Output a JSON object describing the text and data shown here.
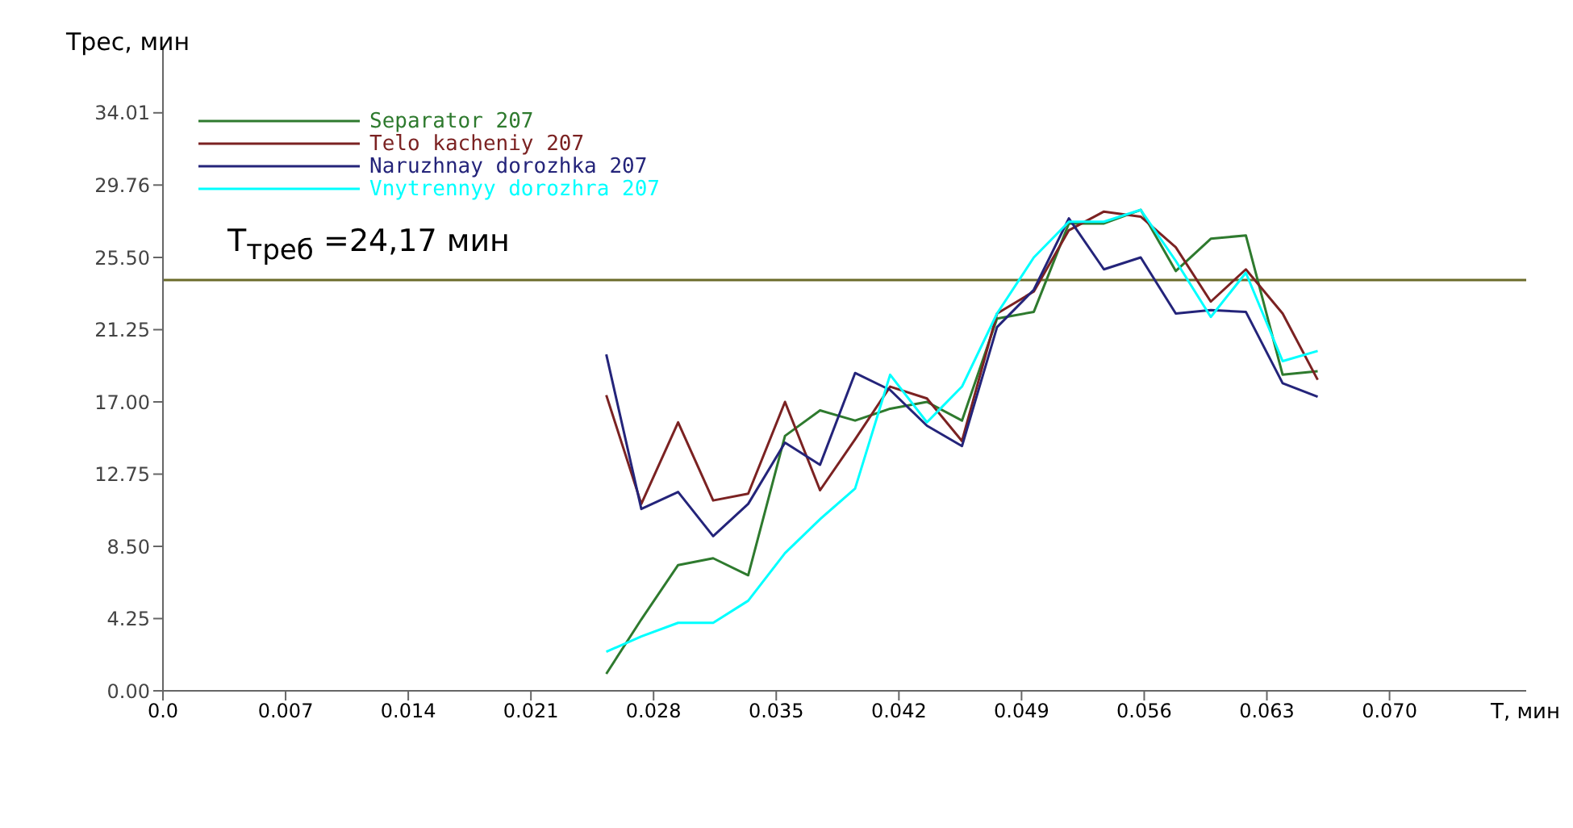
{
  "chart_data": {
    "type": "line",
    "xlabel": "T, мин",
    "ylabel": "Трес, мин",
    "x": [
      0.0253,
      0.0273,
      0.0294,
      0.0314,
      0.0334,
      0.0355,
      0.0375,
      0.0395,
      0.0415,
      0.0436,
      0.0456,
      0.0476,
      0.0497,
      0.0517,
      0.0537,
      0.0558,
      0.0578,
      0.0598,
      0.0618,
      0.0639,
      0.0659
    ],
    "series": [
      {
        "name": "Separator 207",
        "color": "#2e7a2e",
        "values": [
          1.0,
          4.2,
          7.4,
          7.8,
          6.8,
          15.0,
          16.5,
          15.9,
          16.6,
          17.0,
          15.9,
          21.9,
          22.3,
          27.5,
          27.5,
          28.3,
          24.7,
          26.6,
          26.8,
          18.6,
          18.8
        ]
      },
      {
        "name": "Telo kacheniy 207",
        "color": "#7b2222",
        "values": [
          17.4,
          11.0,
          15.8,
          11.2,
          11.6,
          17.0,
          11.8,
          14.8,
          17.9,
          17.2,
          14.7,
          22.2,
          23.5,
          27.1,
          28.2,
          27.9,
          26.1,
          22.9,
          24.8,
          22.2,
          18.3
        ]
      },
      {
        "name": "Naruzhnay dorozhka 207",
        "color": "#24247a",
        "values": [
          19.8,
          10.7,
          11.7,
          9.1,
          11.0,
          14.6,
          13.3,
          18.7,
          17.7,
          15.6,
          14.4,
          21.4,
          23.6,
          27.8,
          24.8,
          25.5,
          22.2,
          22.4,
          22.3,
          18.1,
          17.3
        ]
      },
      {
        "name": "Vnytrennyy dorozhra 207",
        "color": "#00ffff",
        "values": [
          2.3,
          3.2,
          4.0,
          4.0,
          5.3,
          8.1,
          10.1,
          11.9,
          18.6,
          15.8,
          17.9,
          22.2,
          25.5,
          27.6,
          27.6,
          28.3,
          25.3,
          22.0,
          24.6,
          19.4,
          20.0
        ]
      }
    ],
    "xlim": [
      0,
      0.0778
    ],
    "xticks": [
      {
        "value": 0,
        "label": "0.0"
      },
      0.007,
      0.014,
      0.021,
      0.028,
      0.035,
      0.042,
      0.049,
      0.056,
      0.063,
      {
        "value": 0.07,
        "label": "0.070"
      }
    ],
    "ylim": [
      0,
      37.8
    ],
    "yticks": [
      {
        "value": 0,
        "label": "0.00"
      },
      4.25,
      {
        "value": 8.5,
        "label": "8.50"
      },
      12.75,
      {
        "value": 17,
        "label": "17.00"
      },
      21.25,
      {
        "value": 25.5,
        "label": "25.50"
      },
      29.76,
      34.01
    ],
    "ref_lines": [
      {
        "axis": "y",
        "value": 24.17,
        "label": "T$_{треб}$ =24,17 мин",
        "color": "#6b6b2a"
      }
    ],
    "legend": "top left",
    "grid": false,
    "marker": "none",
    "line_style": "solid"
  }
}
